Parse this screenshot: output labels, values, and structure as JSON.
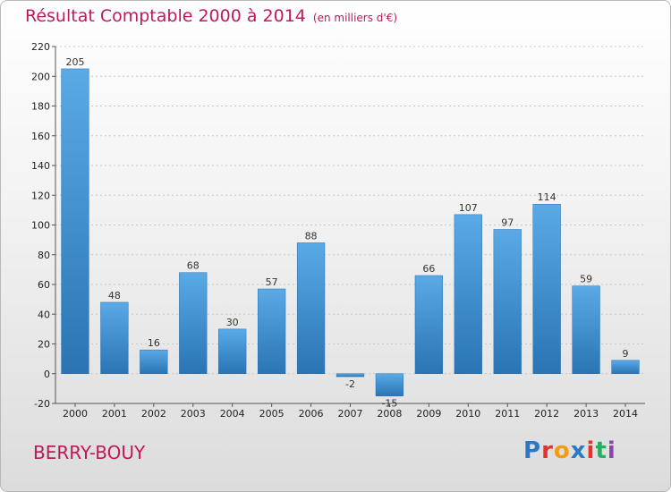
{
  "header": {
    "title": "Résultat Comptable 2000 à 2014",
    "subtitle": "(en milliers d'€)"
  },
  "footer": {
    "commune": "BERRY-BOUY",
    "logo": "Proxiti",
    "logo_colors": [
      "#2b78c5",
      "#e5322d",
      "#f39c12",
      "#2b78c5",
      "#e5322d",
      "#27ae60",
      "#8e44ad"
    ]
  },
  "chart_data": {
    "type": "bar",
    "title": "Résultat Comptable 2000 à 2014",
    "subtitle": "(en milliers d'€)",
    "categories": [
      "2000",
      "2001",
      "2002",
      "2003",
      "2004",
      "2005",
      "2006",
      "2007",
      "2008",
      "2009",
      "2010",
      "2011",
      "2012",
      "2013",
      "2014"
    ],
    "values": [
      205,
      48,
      16,
      68,
      30,
      57,
      88,
      -2,
      -15,
      66,
      107,
      97,
      114,
      59,
      9
    ],
    "labels": [
      "205",
      "48",
      "16",
      "68",
      "30",
      "57",
      "88",
      "-2",
      "-15",
      "66",
      "107",
      "97",
      "114",
      "59",
      "9"
    ],
    "yticks": [
      -20,
      0,
      20,
      40,
      60,
      80,
      100,
      120,
      140,
      160,
      180,
      200,
      220
    ],
    "ylim": [
      -20,
      220
    ],
    "xlabel": "",
    "ylabel": "",
    "grid": true,
    "bar_color_top": "#5aaae6",
    "bar_color_bottom": "#2a74b4"
  }
}
